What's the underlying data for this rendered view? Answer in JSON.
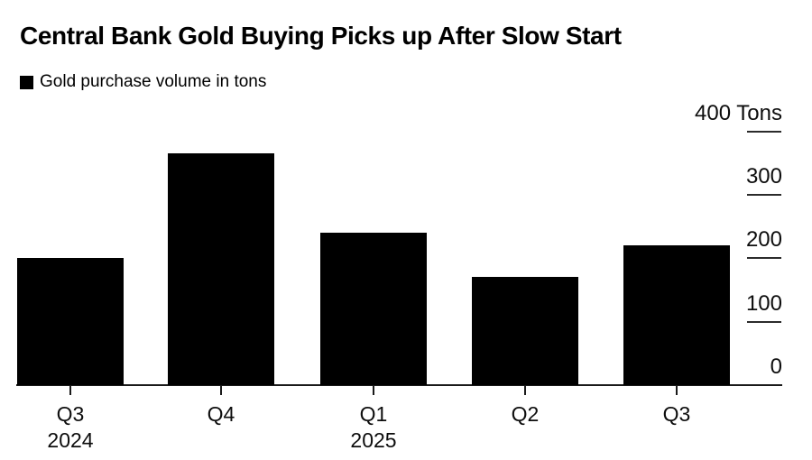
{
  "chart_data": {
    "type": "bar",
    "title": "Central Bank Gold Buying Picks up After Slow Start",
    "legend": "Gold purchase volume in tons",
    "legend_position": "top-left",
    "categories": [
      "Q3",
      "Q4",
      "Q1",
      "Q2",
      "Q3"
    ],
    "values": [
      200,
      365,
      240,
      170,
      220
    ],
    "x_year_labels": [
      {
        "index": 0,
        "label": "2024"
      },
      {
        "index": 2,
        "label": "2025"
      }
    ],
    "y_ticks": [
      {
        "value": 400,
        "label": "400 Tons"
      },
      {
        "value": 300,
        "label": "300"
      },
      {
        "value": 200,
        "label": "200"
      },
      {
        "value": 100,
        "label": "100"
      },
      {
        "value": 0,
        "label": "0"
      }
    ],
    "ylim": [
      0,
      400
    ],
    "unit": "Tons",
    "axis_side": "right",
    "grid": false,
    "bar_color": "#000000",
    "background_color": "#ffffff",
    "text_color": "#000000"
  }
}
